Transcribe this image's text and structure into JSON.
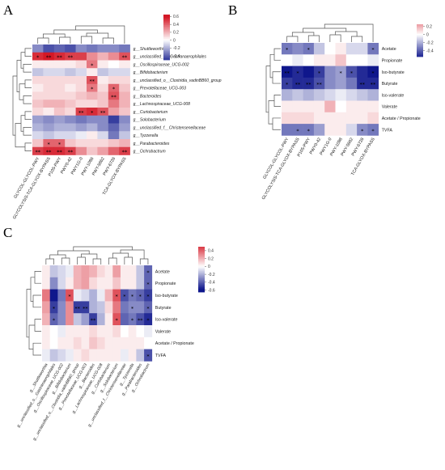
{
  "panels": [
    {
      "id": "A",
      "label": "A",
      "columns": [
        "GLYCOL-GLYCOL-PWY",
        "GLYCOLYSIS-TCA-GLYOX-BYPASS",
        "P105-PWY",
        "PWY0-42",
        "PWY1G-0",
        "PWY-1088",
        "PWY-5862",
        "PWY-6728",
        "TCA-GLYOX-BYPASS"
      ],
      "rows": [
        "g__Shuttleworthia",
        "g__unclassified_o__Gastranaerophilales",
        "g__Oscillospiraceae_UCG-002",
        "g__Bifidobacterium",
        "g__unclassified_o__Clostridia_vadinBB60_group",
        "g__Prevotellaceae_UCG-003",
        "g__Bacteroides",
        "g__Lachnospiraceae_UCG-008",
        "g__Curtobacterium",
        "g__Solobacterium",
        "g__unclassified_f__Christensenellaceae",
        "g__Tyzzerella",
        "g__Parabacteroides",
        "g__Ochrobactrum"
      ],
      "values": [
        [
          -0.3,
          -0.45,
          -0.4,
          -0.45,
          -0.3,
          -0.35,
          -0.3,
          -0.3,
          -0.35
        ],
        [
          0.55,
          0.6,
          0.55,
          0.5,
          0.5,
          0.3,
          0.2,
          0.3,
          0.45
        ],
        [
          0.05,
          0.05,
          0.05,
          0.05,
          0.1,
          0.35,
          0.05,
          0.0,
          0.05
        ],
        [
          -0.15,
          -0.1,
          -0.1,
          -0.15,
          -0.1,
          0.05,
          -0.15,
          -0.1,
          -0.1
        ],
        [
          0.1,
          0.1,
          0.1,
          0.1,
          0.1,
          0.45,
          0.05,
          0.1,
          0.1
        ],
        [
          0.05,
          0.1,
          0.1,
          0.05,
          0.1,
          0.35,
          0.1,
          0.4,
          0.15
        ],
        [
          0.1,
          0.1,
          0.1,
          0.1,
          0.15,
          0.2,
          0.15,
          0.45,
          0.2
        ],
        [
          0.15,
          0.2,
          0.2,
          0.15,
          0.1,
          0.1,
          0.15,
          0.35,
          0.2
        ],
        [
          0.1,
          0.05,
          0.15,
          0.1,
          0.5,
          0.55,
          0.45,
          0.25,
          0.15
        ],
        [
          -0.25,
          -0.3,
          -0.25,
          -0.3,
          -0.35,
          -0.3,
          -0.3,
          -0.5,
          -0.3
        ],
        [
          -0.2,
          -0.25,
          -0.2,
          -0.2,
          -0.25,
          -0.2,
          -0.3,
          -0.4,
          -0.25
        ],
        [
          -0.1,
          -0.15,
          -0.1,
          -0.1,
          -0.05,
          0.05,
          -0.1,
          -0.35,
          -0.15
        ],
        [
          0.15,
          0.4,
          0.4,
          0.15,
          0.1,
          0.1,
          0.1,
          0.15,
          0.2
        ],
        [
          0.5,
          0.55,
          0.55,
          0.5,
          0.3,
          0.15,
          0.25,
          0.4,
          0.5
        ]
      ],
      "stars": [
        [
          1,
          0,
          "*"
        ],
        [
          1,
          1,
          "**"
        ],
        [
          1,
          2,
          "**"
        ],
        [
          1,
          3,
          "**"
        ],
        [
          1,
          8,
          "**"
        ],
        [
          2,
          5,
          "*"
        ],
        [
          4,
          5,
          "**"
        ],
        [
          5,
          5,
          "*"
        ],
        [
          5,
          7,
          "*"
        ],
        [
          6,
          7,
          "**"
        ],
        [
          8,
          4,
          "**"
        ],
        [
          8,
          5,
          "*"
        ],
        [
          8,
          6,
          "**"
        ],
        [
          12,
          1,
          "*"
        ],
        [
          12,
          2,
          "*"
        ],
        [
          13,
          0,
          "**"
        ],
        [
          13,
          1,
          "**"
        ],
        [
          13,
          2,
          "**"
        ],
        [
          13,
          3,
          "**"
        ],
        [
          13,
          8,
          "**"
        ]
      ],
      "colorbar": {
        "ticks": [
          "0.6",
          "0.4",
          "0.2",
          "0",
          "-0.2",
          "-0.4"
        ],
        "min": -0.5,
        "max": 0.65
      }
    },
    {
      "id": "B",
      "label": "B",
      "columns": [
        "GLYCOL-GLYCOL-PWY",
        "GLYCOLYSIS-TCA-GLYOX-BYPASS",
        "P105-PWY",
        "PWY0-42",
        "PWY1G-0",
        "PWY-1088",
        "PWY-5862",
        "PWY-6728",
        "TCA-GLYOX-BYPASS"
      ],
      "rows": [
        "Acetate",
        "Propionate",
        "Iso-butyrate",
        "Butyrate",
        "Iso-valerate",
        "Valerate",
        "Acetate / Propionate",
        "TVFA"
      ],
      "values": [
        [
          -0.35,
          -0.3,
          -0.35,
          -0.15,
          0.0,
          0.05,
          -0.1,
          -0.1,
          -0.35
        ],
        [
          0.0,
          -0.05,
          0.0,
          0.05,
          0.05,
          0.15,
          0.0,
          0.0,
          -0.05
        ],
        [
          -0.6,
          -0.55,
          -0.6,
          -0.5,
          -0.3,
          -0.25,
          -0.45,
          -0.55,
          -0.6
        ],
        [
          -0.5,
          -0.55,
          -0.55,
          -0.45,
          -0.3,
          -0.25,
          -0.35,
          -0.55,
          -0.55
        ],
        [
          -0.2,
          -0.15,
          -0.2,
          -0.15,
          -0.1,
          -0.05,
          -0.1,
          -0.15,
          -0.2
        ],
        [
          0.05,
          0.05,
          0.05,
          0.05,
          0.2,
          0.0,
          0.05,
          0.05,
          0.05
        ],
        [
          0.1,
          0.1,
          0.1,
          0.05,
          0.05,
          0.05,
          0.05,
          0.05,
          0.1
        ],
        [
          -0.35,
          -0.35,
          -0.35,
          -0.25,
          0.05,
          0.05,
          -0.1,
          -0.3,
          -0.35
        ]
      ],
      "stars": [
        [
          0,
          0,
          "*"
        ],
        [
          0,
          2,
          "*"
        ],
        [
          0,
          8,
          "*"
        ],
        [
          2,
          0,
          "**"
        ],
        [
          2,
          1,
          "*"
        ],
        [
          2,
          3,
          "*"
        ],
        [
          2,
          5,
          "*"
        ],
        [
          2,
          6,
          "*"
        ],
        [
          2,
          8,
          "*"
        ],
        [
          3,
          0,
          "*"
        ],
        [
          3,
          1,
          "**"
        ],
        [
          3,
          2,
          "**"
        ],
        [
          3,
          3,
          "**"
        ],
        [
          3,
          7,
          "**"
        ],
        [
          3,
          8,
          "**"
        ],
        [
          7,
          1,
          "*"
        ],
        [
          7,
          2,
          "*"
        ],
        [
          7,
          7,
          "*"
        ],
        [
          7,
          8,
          "*"
        ]
      ],
      "colorbar": {
        "ticks": [
          "0.2",
          "0",
          "-0.2",
          "-0.4"
        ],
        "min": -0.55,
        "max": 0.25
      }
    },
    {
      "id": "C",
      "label": "C",
      "columns": [
        "g__Shuttleworthia",
        "g__unclassified_o__Gastranaerophilales",
        "g__Oscillospiraceae_UCG-002",
        "g__Bifidobacterium",
        "g__unclassified_o__Clostridia_vadinBB60_group",
        "g__Prevotellaceae_UCG-003",
        "g__Bacteroides",
        "g__Lachnospiraceae_UCG-008",
        "g__Curtobacterium",
        "g__Solobacterium",
        "g__unclassified_f__Christensenellaceae",
        "g__Tyzzerella",
        "g__Parabacteroides",
        "g__Ochrobactrum"
      ],
      "rows": [
        "Acetate",
        "Propionate",
        "Iso-butyrate",
        "Butyrate",
        "Iso-valerate",
        "Valerate",
        "Acetate / Propionate",
        "TVFA"
      ],
      "values": [
        [
          0.05,
          -0.15,
          -0.1,
          -0.05,
          0.2,
          0.25,
          0.2,
          0.1,
          0.05,
          0.25,
          0.05,
          0.05,
          -0.15,
          -0.4
        ],
        [
          0.05,
          -0.3,
          -0.1,
          0.05,
          0.2,
          0.25,
          0.1,
          0.05,
          0.05,
          0.15,
          0.05,
          0.05,
          -0.15,
          -0.4
        ],
        [
          0.35,
          -0.65,
          -0.35,
          0.45,
          -0.05,
          -0.1,
          -0.2,
          -0.05,
          0.2,
          0.45,
          -0.45,
          -0.35,
          -0.4,
          -0.5
        ],
        [
          0.25,
          -0.5,
          -0.3,
          0.3,
          -0.5,
          -0.5,
          -0.2,
          -0.15,
          0.1,
          0.35,
          -0.35,
          -0.3,
          -0.3,
          -0.4
        ],
        [
          0.2,
          -0.4,
          -0.3,
          0.3,
          -0.15,
          -0.25,
          -0.5,
          -0.2,
          0.05,
          0.45,
          -0.4,
          -0.35,
          -0.45,
          -0.55
        ],
        [
          0.05,
          0.0,
          -0.05,
          0.05,
          0.05,
          0.05,
          0.1,
          0.05,
          0.05,
          0.1,
          0.0,
          0.05,
          0.0,
          -0.05
        ],
        [
          0.05,
          0.0,
          0.05,
          0.05,
          0.1,
          0.05,
          0.15,
          0.1,
          0.05,
          0.05,
          0.05,
          0.05,
          0.05,
          0.0
        ],
        [
          -0.05,
          -0.15,
          -0.1,
          -0.05,
          0.05,
          0.1,
          0.05,
          0.05,
          0.05,
          0.05,
          -0.05,
          0.05,
          -0.15,
          -0.45
        ]
      ],
      "stars": [
        [
          0,
          13,
          "*"
        ],
        [
          1,
          13,
          "*"
        ],
        [
          2,
          3,
          "*"
        ],
        [
          2,
          9,
          "*"
        ],
        [
          2,
          10,
          "*"
        ],
        [
          2,
          11,
          "*"
        ],
        [
          2,
          12,
          "*"
        ],
        [
          2,
          13,
          "*"
        ],
        [
          3,
          1,
          "*"
        ],
        [
          3,
          4,
          "**"
        ],
        [
          3,
          5,
          "**"
        ],
        [
          3,
          11,
          "*"
        ],
        [
          3,
          13,
          "*"
        ],
        [
          4,
          1,
          "*"
        ],
        [
          4,
          6,
          "**"
        ],
        [
          4,
          9,
          "*"
        ],
        [
          4,
          11,
          "*"
        ],
        [
          4,
          12,
          "**"
        ],
        [
          4,
          13,
          "*"
        ],
        [
          7,
          13,
          "*"
        ]
      ],
      "colorbar": {
        "ticks": [
          "0.4",
          "0.2",
          "0",
          "-0.2",
          "-0.4",
          "-0.6"
        ],
        "min": -0.65,
        "max": 0.5
      }
    }
  ]
}
